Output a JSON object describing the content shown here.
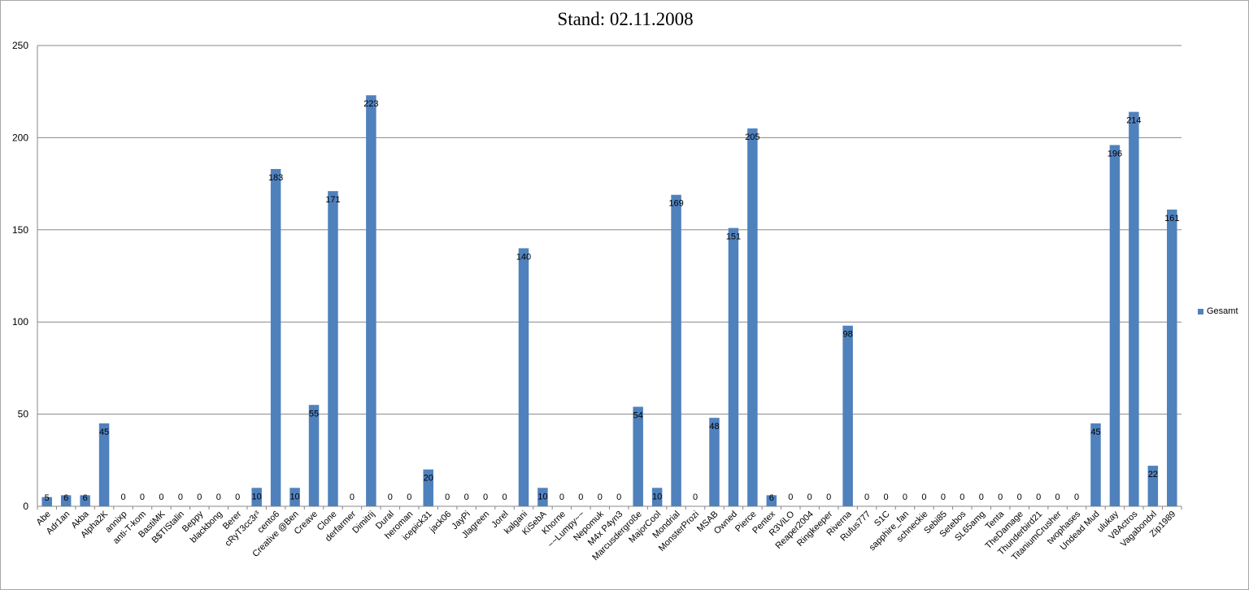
{
  "chart_data": {
    "type": "bar",
    "title": "Stand: 02.11.2008",
    "xlabel": "",
    "ylabel": "",
    "ylim": [
      0,
      250
    ],
    "yticks": [
      0,
      50,
      100,
      150,
      200,
      250
    ],
    "grid": true,
    "legend_position": "right",
    "categories": [
      "Abe",
      "Adr1an",
      "Akba",
      "Alpha2K",
      "annixp",
      "anti-T-kom",
      "BastiMK",
      "B$TIStalin",
      "Beppy",
      "blackbong",
      "Berer",
      "cRyT3cc3r³",
      "cento6",
      "Creative @Ben",
      "Creave",
      "Clone",
      "derfarmer",
      "Dimitrij",
      "Dural",
      "heroman",
      "icepick31",
      "jack06",
      "JayPi",
      "Jlagreen",
      "Jorel",
      "kalgani",
      "KiSebA",
      "Khorne",
      "~~Lumpy~~",
      "Nepomuk",
      "M4x P4yn3",
      "Marcusdergroße",
      "MajorCool",
      "Mondrial",
      "MonsterProzi",
      "MSAB",
      "Owned",
      "Pierce",
      "Pentex",
      "R3ViLO",
      "Reaper2004",
      "Ringkeeper",
      "Riverna",
      "Rufus777",
      "S1C",
      "sapphire_fan",
      "schneckie",
      "Sebi85",
      "Setebos",
      "SL65amg",
      "Tenta",
      "TheDamage",
      "Thunderbird21",
      "TitaniumCrusher",
      "twophases",
      "Undead Mud",
      "ulukay",
      "V8Actros",
      "Vagabondxl",
      "Zip1989"
    ],
    "series": [
      {
        "name": "Gesamt",
        "color": "#4f81bd",
        "values": [
          5,
          6,
          6,
          45,
          0,
          0,
          0,
          0,
          0,
          0,
          0,
          10,
          183,
          10,
          55,
          171,
          0,
          223,
          0,
          0,
          20,
          0,
          0,
          0,
          0,
          140,
          10,
          0,
          0,
          0,
          0,
          54,
          10,
          169,
          0,
          48,
          151,
          205,
          6,
          0,
          0,
          0,
          98,
          0,
          0,
          0,
          0,
          0,
          0,
          0,
          0,
          0,
          0,
          0,
          0,
          45,
          196,
          214,
          22,
          161
        ]
      }
    ]
  }
}
